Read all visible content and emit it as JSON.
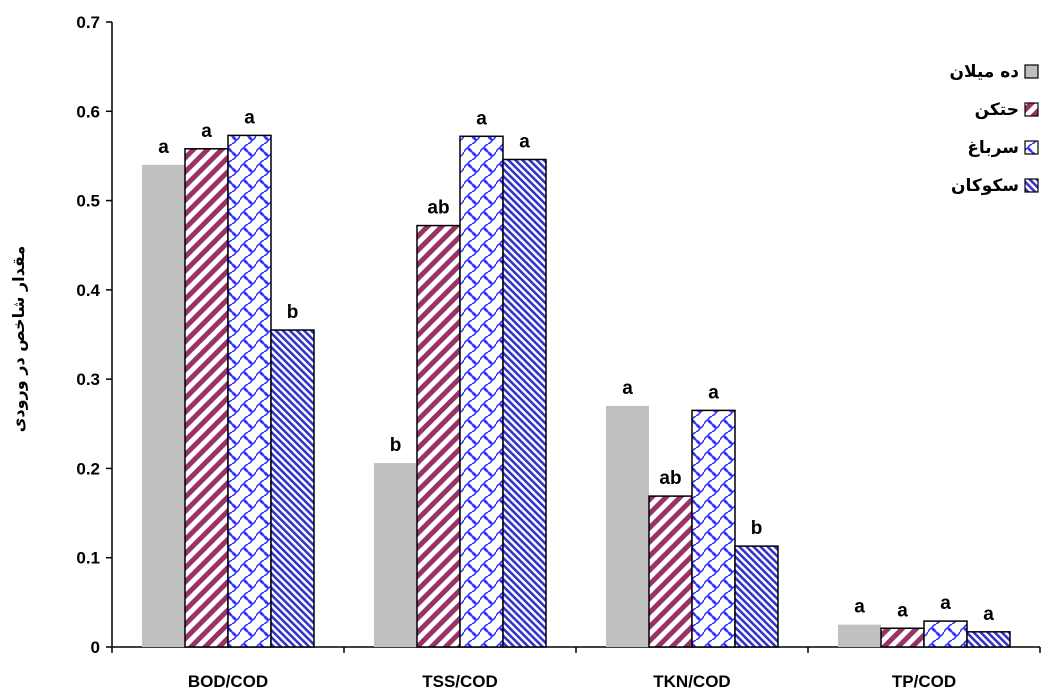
{
  "chart_data": {
    "type": "bar",
    "categories": [
      "BOD/COD",
      "TSS/COD",
      "TKN/COD",
      "TP/COD"
    ],
    "series": [
      {
        "name": "ده میلان",
        "values": [
          0.54,
          0.206,
          0.27,
          0.025
        ],
        "labels": [
          "a",
          "b",
          "a",
          "a"
        ],
        "color": "#c0c0c0",
        "pattern": "solid-gray"
      },
      {
        "name": "حتکن",
        "values": [
          0.558,
          0.472,
          0.169,
          0.021
        ],
        "labels": [
          "a",
          "ab",
          "ab",
          "a"
        ],
        "color": "#993366",
        "pattern": "diagonal-stripes"
      },
      {
        "name": "سرباغ",
        "values": [
          0.573,
          0.572,
          0.265,
          0.029
        ],
        "labels": [
          "a",
          "a",
          "a",
          "a"
        ],
        "color": "#3333ff",
        "pattern": "wave-lattice"
      },
      {
        "name": "سکوکان",
        "values": [
          0.355,
          0.546,
          0.113,
          0.017
        ],
        "labels": [
          "b",
          "a",
          "b",
          "a"
        ],
        "color": "#3333cc",
        "pattern": "dense-diagonal"
      }
    ],
    "title": "",
    "xlabel": "",
    "ylabel": "مقدار شاخص در ورودی",
    "ylim": [
      0,
      0.7
    ],
    "yticks": [
      "0",
      "0.1",
      "0.2",
      "0.3",
      "0.4",
      "0.5",
      "0.6",
      "0.7"
    ],
    "grid": false,
    "legend_position": "top-right"
  }
}
